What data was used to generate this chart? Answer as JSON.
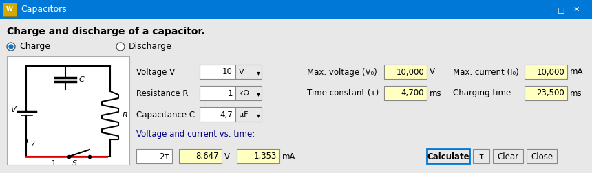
{
  "title_bar": "Capacitors",
  "title_bar_color": "#0078D7",
  "title_bar_text_color": "#ffffff",
  "bg_color": "#E8E8E8",
  "heading": "Charge and discharge of a capacitor.",
  "radio_charge_label": "Charge",
  "radio_discharge_label": "Discharge",
  "fields": [
    {
      "label": "Voltage V",
      "value": "10",
      "unit": "V",
      "has_dropdown": true
    },
    {
      "label": "Resistance R",
      "value": "1",
      "unit": "kΩ",
      "has_dropdown": true
    },
    {
      "label": "Capacitance C",
      "value": "4,7",
      "unit": "μF",
      "has_dropdown": true
    }
  ],
  "right_fields": [
    {
      "label": "Max. voltage (V₀)",
      "value": "10,000",
      "unit": "V"
    },
    {
      "label": "Time constant (τ)",
      "value": "4,700",
      "unit": "ms"
    },
    {
      "label": "Max. current (I₀)",
      "value": "10,000",
      "unit": "mA"
    },
    {
      "label": "Charging time",
      "value": "23,500",
      "unit": "ms"
    }
  ],
  "link_text": "Voltage and current vs. time:",
  "bottom_fields": [
    {
      "value": "2τ"
    },
    {
      "value": "8,647",
      "unit": "V"
    },
    {
      "value": "1,353",
      "unit": "mA"
    }
  ],
  "buttons": [
    "Calculate",
    "τ",
    "Clear",
    "Close"
  ],
  "input_bg": "#ffffff",
  "result_bg": "#FFFFC0",
  "button_bg": "#E8E8E8",
  "text_color": "#000000",
  "link_color": "#000080"
}
